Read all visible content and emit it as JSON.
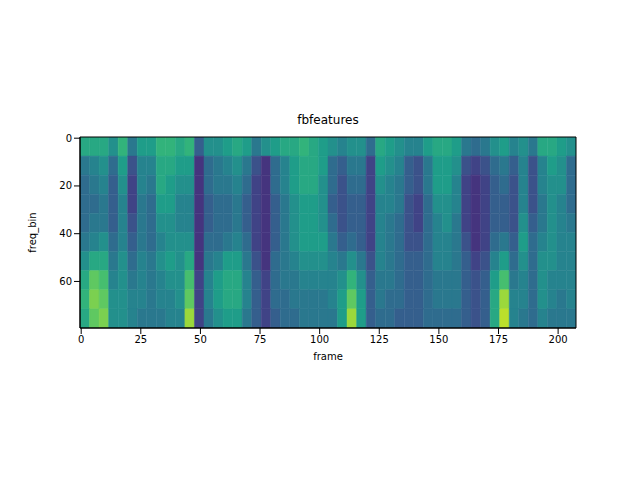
{
  "chart_data": {
    "type": "heatmap",
    "title": "fbfeatures",
    "x_label": "frame",
    "y_label": "freq_bin",
    "xlim": [
      -0.5,
      207.5
    ],
    "ylim": [
      79.5,
      -0.5
    ],
    "xticks": [
      0,
      25,
      50,
      75,
      100,
      125,
      150,
      175,
      200
    ],
    "yticks": [
      0,
      20,
      40,
      60
    ],
    "color_range": [
      0,
      1
    ],
    "x_edges": [
      -0.5,
      3.5,
      7.5,
      11.5,
      15.5,
      19.5,
      23.5,
      27.5,
      31.5,
      35.5,
      39.5,
      43.5,
      47.5,
      51.5,
      55.5,
      59.5,
      63.5,
      67.5,
      71.5,
      75.5,
      79.5,
      83.5,
      87.5,
      91.5,
      95.5,
      99.5,
      103.5,
      107.5,
      111.5,
      115.5,
      119.5,
      123.5,
      127.5,
      131.5,
      135.5,
      139.5,
      143.5,
      147.5,
      151.5,
      155.5,
      159.5,
      163.5,
      167.5,
      171.5,
      175.5,
      179.5,
      183.5,
      187.5,
      191.5,
      195.5,
      199.5,
      203.5,
      207.5
    ],
    "y_edges": [
      -0.5,
      7.5,
      15.5,
      23.5,
      31.5,
      39.5,
      47.5,
      55.5,
      63.5,
      71.5,
      79.5
    ],
    "cells": [
      [
        0.6,
        0.6,
        0.6,
        0.5,
        0.65,
        0.4,
        0.55,
        0.55,
        0.65,
        0.65,
        0.6,
        0.65,
        0.3,
        0.5,
        0.5,
        0.55,
        0.6,
        0.55,
        0.4,
        0.5,
        0.55,
        0.6,
        0.6,
        0.65,
        0.6,
        0.55,
        0.5,
        0.45,
        0.5,
        0.5,
        0.35,
        0.6,
        0.55,
        0.5,
        0.45,
        0.45,
        0.55,
        0.6,
        0.6,
        0.55,
        0.4,
        0.35,
        0.4,
        0.5,
        0.55,
        0.45,
        0.5,
        0.4,
        0.6,
        0.6,
        0.55,
        0.5
      ],
      [
        0.4,
        0.45,
        0.5,
        0.35,
        0.55,
        0.25,
        0.45,
        0.45,
        0.6,
        0.6,
        0.55,
        0.55,
        0.15,
        0.35,
        0.4,
        0.45,
        0.5,
        0.4,
        0.25,
        0.15,
        0.35,
        0.45,
        0.55,
        0.6,
        0.6,
        0.55,
        0.35,
        0.3,
        0.4,
        0.4,
        0.2,
        0.55,
        0.5,
        0.45,
        0.3,
        0.25,
        0.4,
        0.55,
        0.55,
        0.5,
        0.25,
        0.2,
        0.25,
        0.35,
        0.4,
        0.3,
        0.45,
        0.25,
        0.45,
        0.55,
        0.5,
        0.35
      ],
      [
        0.35,
        0.4,
        0.45,
        0.3,
        0.5,
        0.2,
        0.45,
        0.4,
        0.6,
        0.55,
        0.5,
        0.5,
        0.15,
        0.35,
        0.4,
        0.4,
        0.45,
        0.35,
        0.2,
        0.15,
        0.35,
        0.45,
        0.55,
        0.6,
        0.6,
        0.5,
        0.35,
        0.25,
        0.35,
        0.35,
        0.2,
        0.5,
        0.45,
        0.4,
        0.3,
        0.25,
        0.4,
        0.55,
        0.55,
        0.45,
        0.2,
        0.15,
        0.2,
        0.3,
        0.35,
        0.25,
        0.45,
        0.25,
        0.45,
        0.5,
        0.5,
        0.35
      ],
      [
        0.35,
        0.35,
        0.4,
        0.3,
        0.45,
        0.2,
        0.4,
        0.35,
        0.55,
        0.55,
        0.45,
        0.45,
        0.15,
        0.3,
        0.35,
        0.35,
        0.4,
        0.3,
        0.2,
        0.15,
        0.3,
        0.4,
        0.5,
        0.55,
        0.55,
        0.5,
        0.3,
        0.25,
        0.3,
        0.3,
        0.2,
        0.45,
        0.45,
        0.4,
        0.25,
        0.2,
        0.35,
        0.5,
        0.5,
        0.45,
        0.2,
        0.15,
        0.2,
        0.3,
        0.3,
        0.25,
        0.45,
        0.25,
        0.4,
        0.5,
        0.45,
        0.35
      ],
      [
        0.35,
        0.4,
        0.4,
        0.3,
        0.45,
        0.25,
        0.4,
        0.35,
        0.5,
        0.5,
        0.45,
        0.45,
        0.15,
        0.3,
        0.35,
        0.35,
        0.4,
        0.3,
        0.2,
        0.15,
        0.3,
        0.4,
        0.5,
        0.55,
        0.55,
        0.5,
        0.35,
        0.25,
        0.3,
        0.3,
        0.2,
        0.45,
        0.4,
        0.35,
        0.25,
        0.2,
        0.35,
        0.45,
        0.5,
        0.4,
        0.2,
        0.15,
        0.2,
        0.3,
        0.3,
        0.25,
        0.5,
        0.3,
        0.4,
        0.5,
        0.45,
        0.4
      ],
      [
        0.4,
        0.45,
        0.5,
        0.35,
        0.45,
        0.3,
        0.4,
        0.35,
        0.45,
        0.5,
        0.5,
        0.5,
        0.15,
        0.35,
        0.35,
        0.4,
        0.45,
        0.35,
        0.2,
        0.15,
        0.3,
        0.4,
        0.5,
        0.55,
        0.55,
        0.55,
        0.4,
        0.3,
        0.35,
        0.3,
        0.2,
        0.45,
        0.4,
        0.35,
        0.25,
        0.25,
        0.35,
        0.45,
        0.45,
        0.4,
        0.25,
        0.15,
        0.2,
        0.35,
        0.4,
        0.3,
        0.55,
        0.35,
        0.45,
        0.5,
        0.45,
        0.45
      ],
      [
        0.5,
        0.6,
        0.6,
        0.4,
        0.5,
        0.35,
        0.45,
        0.4,
        0.5,
        0.55,
        0.5,
        0.6,
        0.15,
        0.4,
        0.45,
        0.55,
        0.55,
        0.4,
        0.25,
        0.15,
        0.35,
        0.4,
        0.45,
        0.5,
        0.5,
        0.5,
        0.45,
        0.4,
        0.5,
        0.4,
        0.25,
        0.45,
        0.4,
        0.35,
        0.3,
        0.3,
        0.35,
        0.45,
        0.45,
        0.4,
        0.3,
        0.2,
        0.25,
        0.45,
        0.55,
        0.35,
        0.5,
        0.35,
        0.5,
        0.5,
        0.45,
        0.45
      ],
      [
        0.6,
        0.75,
        0.7,
        0.45,
        0.5,
        0.4,
        0.45,
        0.4,
        0.45,
        0.5,
        0.5,
        0.7,
        0.2,
        0.45,
        0.55,
        0.6,
        0.6,
        0.45,
        0.3,
        0.2,
        0.35,
        0.4,
        0.4,
        0.45,
        0.45,
        0.45,
        0.45,
        0.5,
        0.65,
        0.5,
        0.3,
        0.4,
        0.4,
        0.35,
        0.3,
        0.3,
        0.35,
        0.4,
        0.4,
        0.4,
        0.3,
        0.25,
        0.3,
        0.55,
        0.7,
        0.4,
        0.45,
        0.35,
        0.5,
        0.45,
        0.45,
        0.45
      ],
      [
        0.65,
        0.8,
        0.75,
        0.5,
        0.5,
        0.45,
        0.45,
        0.4,
        0.45,
        0.45,
        0.5,
        0.75,
        0.2,
        0.45,
        0.55,
        0.6,
        0.6,
        0.45,
        0.3,
        0.2,
        0.35,
        0.35,
        0.4,
        0.4,
        0.4,
        0.4,
        0.45,
        0.55,
        0.75,
        0.55,
        0.3,
        0.4,
        0.35,
        0.35,
        0.3,
        0.3,
        0.35,
        0.4,
        0.4,
        0.4,
        0.3,
        0.25,
        0.3,
        0.6,
        0.85,
        0.45,
        0.45,
        0.35,
        0.5,
        0.45,
        0.4,
        0.45
      ],
      [
        0.6,
        0.75,
        0.8,
        0.5,
        0.5,
        0.45,
        0.4,
        0.4,
        0.4,
        0.45,
        0.45,
        0.85,
        0.2,
        0.4,
        0.5,
        0.55,
        0.55,
        0.4,
        0.3,
        0.2,
        0.3,
        0.35,
        0.35,
        0.4,
        0.4,
        0.4,
        0.4,
        0.55,
        0.85,
        0.55,
        0.3,
        0.35,
        0.35,
        0.3,
        0.3,
        0.3,
        0.35,
        0.35,
        0.35,
        0.35,
        0.3,
        0.25,
        0.3,
        0.6,
        0.9,
        0.45,
        0.4,
        0.35,
        0.45,
        0.4,
        0.4,
        0.4
      ]
    ]
  }
}
